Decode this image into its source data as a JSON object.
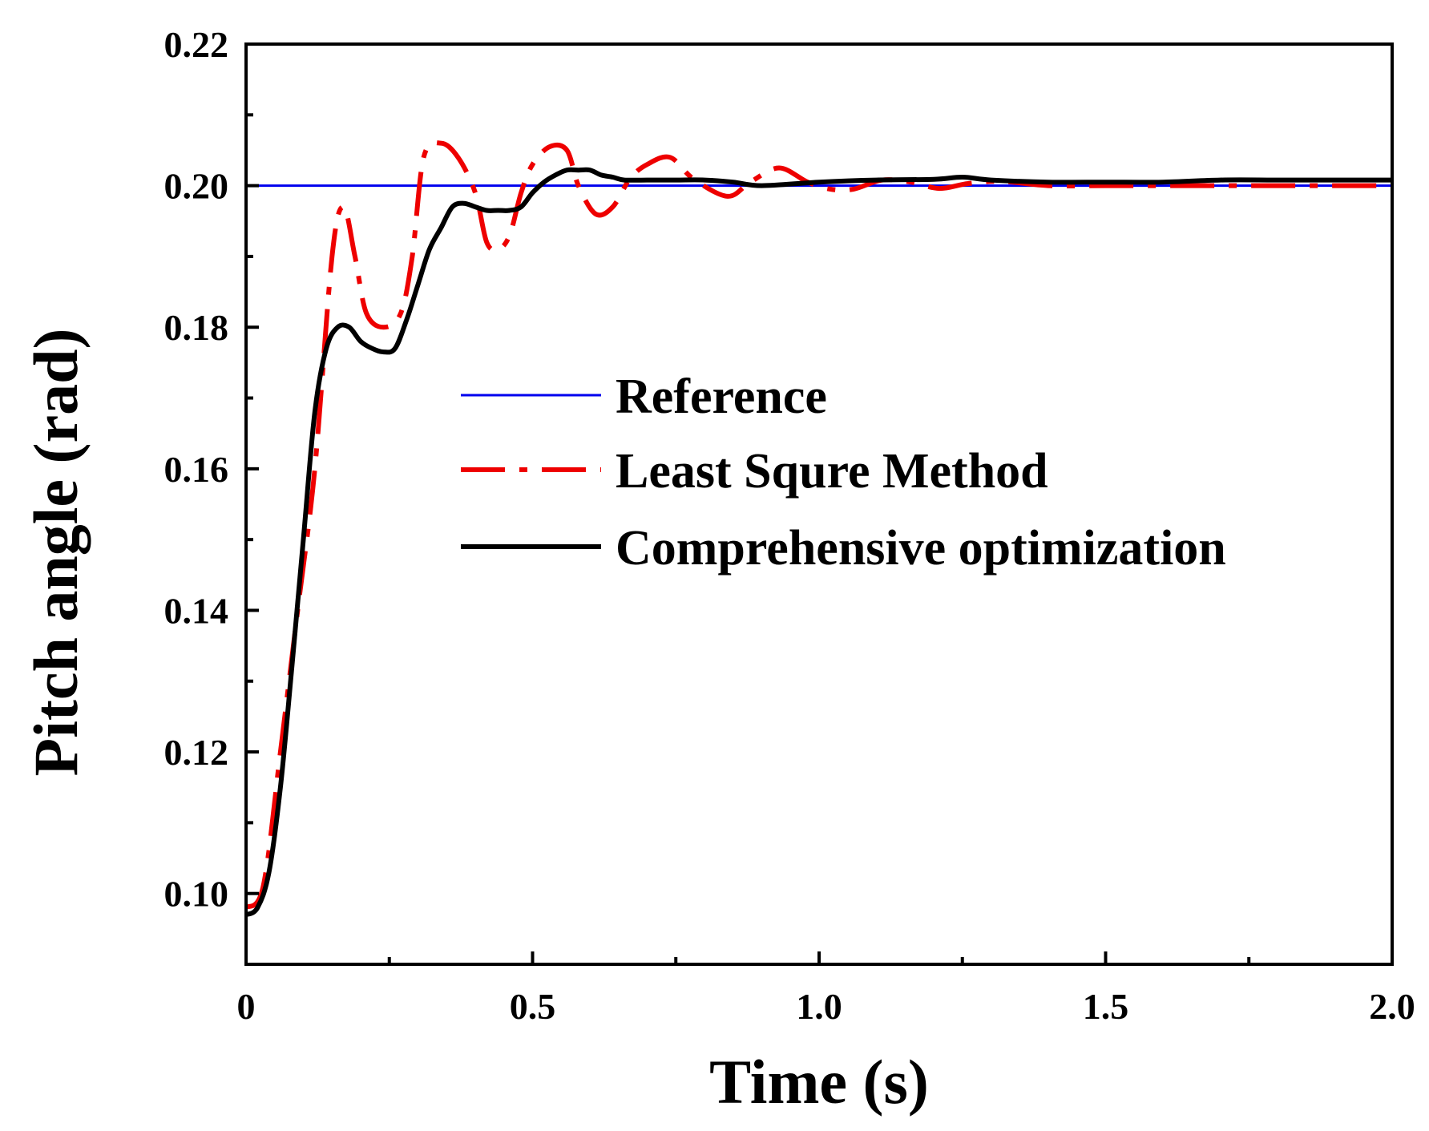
{
  "chart_data": {
    "type": "line",
    "title": "",
    "xlabel": "Time (s)",
    "ylabel": "Pitch angle (rad)",
    "xlim": [
      0,
      2.0
    ],
    "ylim": [
      0.09,
      0.22
    ],
    "x_ticks": [
      0,
      0.5,
      1.0,
      1.5,
      2.0
    ],
    "x_tick_labels": [
      "0",
      "0.5",
      "1.0",
      "1.5",
      "2.0"
    ],
    "y_ticks": [
      0.1,
      0.12,
      0.14,
      0.16,
      0.18,
      0.2,
      0.22
    ],
    "y_tick_labels": [
      "0.10",
      "0.12",
      "0.14",
      "0.16",
      "0.18",
      "0.20",
      "0.22"
    ],
    "grid": false,
    "legend_position": "center-right",
    "series": [
      {
        "name": "Reference",
        "color": "#0000ee",
        "style": "solid",
        "x": [
          0,
          2.0
        ],
        "y": [
          0.2,
          0.2
        ]
      },
      {
        "name": "Least Squre Method",
        "color": "#ee0000",
        "style": "dash-dot",
        "x": [
          0,
          0.03,
          0.06,
          0.09,
          0.12,
          0.15,
          0.17,
          0.19,
          0.21,
          0.24,
          0.27,
          0.29,
          0.31,
          0.34,
          0.37,
          0.4,
          0.42,
          0.44,
          0.46,
          0.48,
          0.5,
          0.53,
          0.56,
          0.58,
          0.61,
          0.64,
          0.67,
          0.7,
          0.74,
          0.78,
          0.84,
          0.88,
          0.93,
          0.98,
          1.02,
          1.06,
          1.11,
          1.16,
          1.21,
          1.26,
          1.32,
          1.4,
          1.5,
          1.6,
          1.7,
          1.8,
          1.9,
          2.0
        ],
        "y": [
          0.098,
          0.101,
          0.12,
          0.14,
          0.16,
          0.19,
          0.197,
          0.19,
          0.182,
          0.18,
          0.182,
          0.19,
          0.204,
          0.206,
          0.204,
          0.199,
          0.192,
          0.191,
          0.193,
          0.199,
          0.203,
          0.2055,
          0.205,
          0.2,
          0.196,
          0.197,
          0.201,
          0.203,
          0.204,
          0.201,
          0.1985,
          0.2005,
          0.2025,
          0.2005,
          0.1995,
          0.1995,
          0.2008,
          0.2005,
          0.1996,
          0.2003,
          0.2006,
          0.2,
          0.2,
          0.2,
          0.2,
          0.2,
          0.2,
          0.2
        ]
      },
      {
        "name": "Comprehensive optimization",
        "color": "#000000",
        "style": "solid",
        "x": [
          0,
          0.02,
          0.04,
          0.06,
          0.08,
          0.1,
          0.12,
          0.14,
          0.16,
          0.18,
          0.2,
          0.22,
          0.24,
          0.26,
          0.28,
          0.3,
          0.32,
          0.34,
          0.36,
          0.38,
          0.4,
          0.42,
          0.44,
          0.46,
          0.48,
          0.5,
          0.52,
          0.54,
          0.56,
          0.58,
          0.6,
          0.62,
          0.64,
          0.66,
          0.7,
          0.75,
          0.8,
          0.85,
          0.9,
          1.0,
          1.1,
          1.2,
          1.25,
          1.3,
          1.4,
          1.5,
          1.6,
          1.7,
          1.8,
          1.9,
          2.0
        ],
        "y": [
          0.097,
          0.098,
          0.103,
          0.115,
          0.132,
          0.15,
          0.168,
          0.177,
          0.18,
          0.18,
          0.178,
          0.177,
          0.1765,
          0.177,
          0.181,
          0.186,
          0.191,
          0.194,
          0.197,
          0.1975,
          0.197,
          0.1965,
          0.1965,
          0.1965,
          0.197,
          0.199,
          0.2005,
          0.2015,
          0.2022,
          0.2022,
          0.2022,
          0.2015,
          0.2012,
          0.2008,
          0.2008,
          0.2008,
          0.2008,
          0.2005,
          0.2,
          0.2005,
          0.2008,
          0.2009,
          0.2012,
          0.2008,
          0.2005,
          0.2005,
          0.2005,
          0.2008,
          0.2008,
          0.2008,
          0.2008
        ]
      }
    ]
  }
}
